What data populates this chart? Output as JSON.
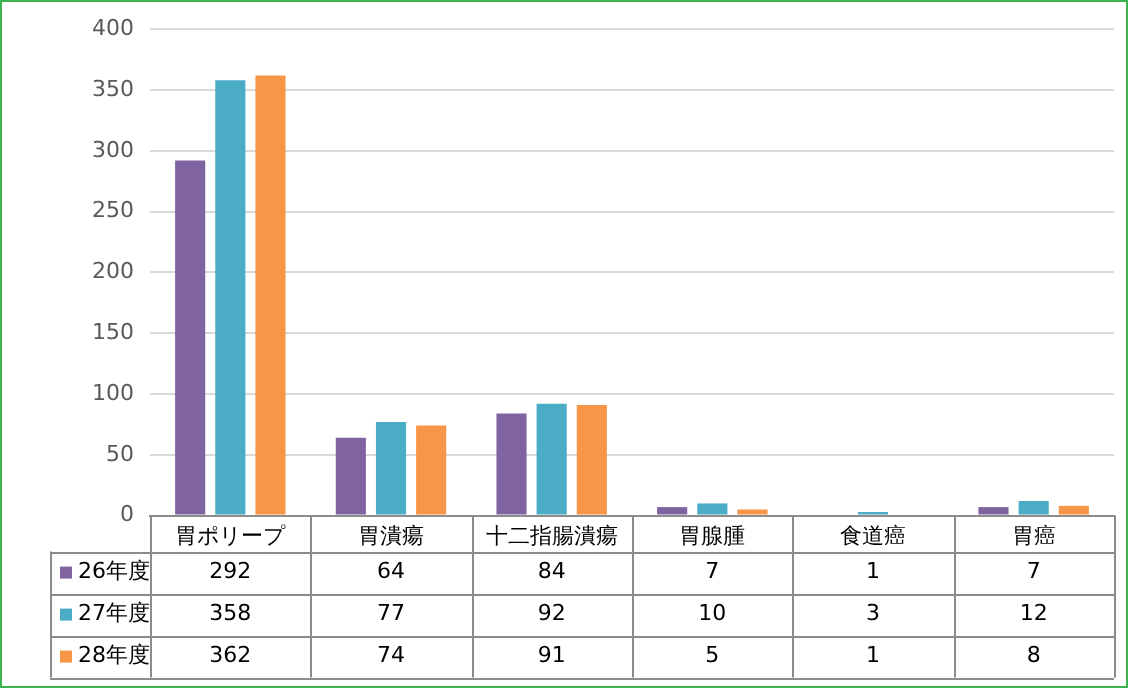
{
  "chart_data": {
    "type": "bar",
    "categories": [
      "胃ポリープ",
      "胃潰瘍",
      "十二指腸潰瘍",
      "胃腺腫",
      "食道癌",
      "胃癌"
    ],
    "series": [
      {
        "name": "26年度",
        "color": "#8064a2",
        "values": [
          292,
          64,
          84,
          7,
          1,
          7
        ]
      },
      {
        "name": "27年度",
        "color": "#4bacc6",
        "values": [
          358,
          77,
          92,
          10,
          3,
          12
        ]
      },
      {
        "name": "28年度",
        "color": "#f79646",
        "values": [
          362,
          74,
          91,
          5,
          1,
          8
        ]
      }
    ],
    "ylim": [
      0,
      400
    ],
    "yticks": [
      0,
      50,
      100,
      150,
      200,
      250,
      300,
      350,
      400
    ],
    "grid": "y",
    "legend": "bottom",
    "data_labels": true
  }
}
